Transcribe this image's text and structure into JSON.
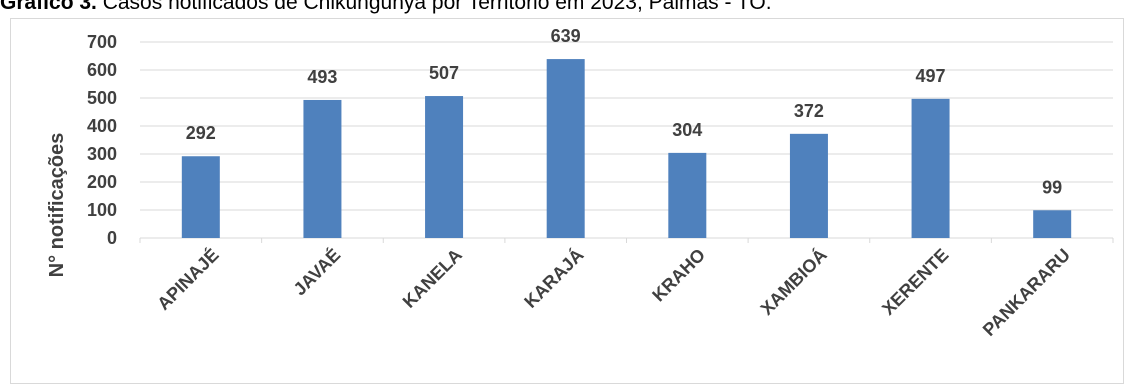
{
  "caption": {
    "bold": "Gráfico 3.",
    "text": " Casos notificados de Chikungunya por Território em 2023, Palmas - TO."
  },
  "chart_data": {
    "type": "bar",
    "title": "",
    "xlabel": "",
    "ylabel": "N° notificações",
    "categories": [
      "APINAJÉ",
      "JAVAÉ",
      "KANELA",
      "KARAJÁ",
      "KRAHO",
      "XAMBIOÁ",
      "XERENTE",
      "PANKARARU"
    ],
    "values": [
      292,
      493,
      507,
      639,
      304,
      372,
      497,
      99
    ],
    "ylim": [
      0,
      700
    ],
    "yticks": [
      0,
      100,
      200,
      300,
      400,
      500,
      600,
      700
    ],
    "grid": true,
    "bar_color": "#4f81bd",
    "grid_color": "#d9d9d9",
    "text_color": "#404040"
  }
}
